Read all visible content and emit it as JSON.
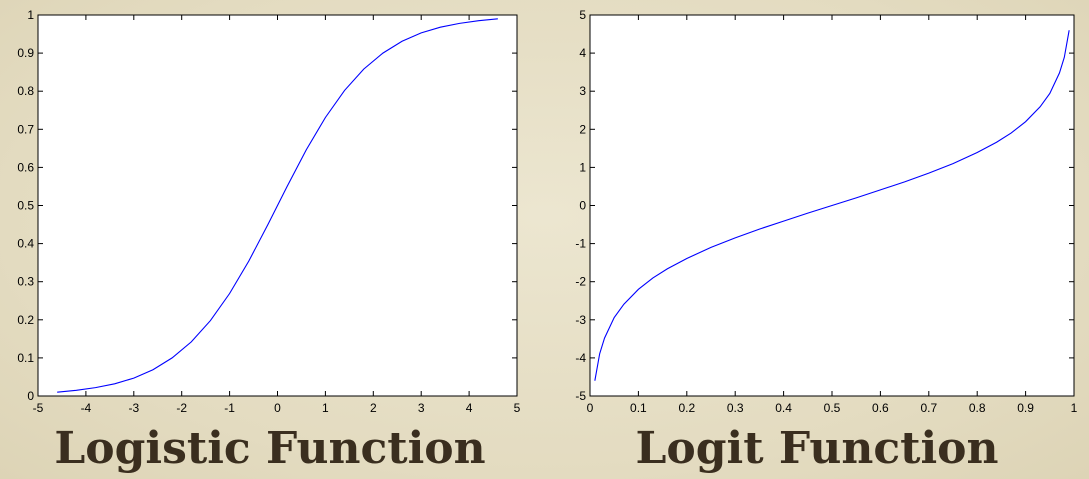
{
  "chart_data": [
    {
      "type": "line",
      "title": "Logistic Function",
      "xlabel": "",
      "ylabel": "",
      "xlim": [
        -5,
        5
      ],
      "ylim": [
        0,
        1
      ],
      "x_ticks": [
        "-5",
        "-4",
        "-3",
        "-2",
        "-1",
        "0",
        "1",
        "2",
        "3",
        "4",
        "5"
      ],
      "y_ticks": [
        "0",
        "0.1",
        "0.2",
        "0.3",
        "0.4",
        "0.5",
        "0.6",
        "0.7",
        "0.8",
        "0.9",
        "1"
      ],
      "grid": false,
      "line_color": "#0000ff",
      "series": [
        {
          "x": [
            -4.6,
            -4.2,
            -3.8,
            -3.4,
            -3.0,
            -2.6,
            -2.2,
            -1.8,
            -1.4,
            -1.0,
            -0.6,
            -0.2,
            0.2,
            0.6,
            1.0,
            1.4,
            1.8,
            2.2,
            2.6,
            3.0,
            3.4,
            3.8,
            4.2,
            4.6
          ],
          "y": [
            0.01,
            0.015,
            0.022,
            0.032,
            0.047,
            0.069,
            0.1,
            0.142,
            0.198,
            0.269,
            0.354,
            0.45,
            0.55,
            0.646,
            0.731,
            0.802,
            0.858,
            0.9,
            0.931,
            0.953,
            0.968,
            0.978,
            0.985,
            0.99
          ]
        }
      ]
    },
    {
      "type": "line",
      "title": "Logit Function",
      "xlabel": "",
      "ylabel": "",
      "xlim": [
        0,
        1
      ],
      "ylim": [
        -5,
        5
      ],
      "x_ticks": [
        "0",
        "0.1",
        "0.2",
        "0.3",
        "0.4",
        "0.5",
        "0.6",
        "0.7",
        "0.8",
        "0.9",
        "1"
      ],
      "y_ticks": [
        "-5",
        "-4",
        "-3",
        "-2",
        "-1",
        "0",
        "1",
        "2",
        "3",
        "4",
        "5"
      ],
      "grid": false,
      "line_color": "#0000ff",
      "series": [
        {
          "x": [
            0.01,
            0.02,
            0.03,
            0.05,
            0.07,
            0.1,
            0.13,
            0.16,
            0.2,
            0.25,
            0.3,
            0.35,
            0.4,
            0.45,
            0.5,
            0.55,
            0.6,
            0.65,
            0.7,
            0.75,
            0.8,
            0.84,
            0.87,
            0.9,
            0.93,
            0.95,
            0.97,
            0.98,
            0.99
          ],
          "y": [
            -4.6,
            -3.89,
            -3.48,
            -2.94,
            -2.59,
            -2.2,
            -1.9,
            -1.66,
            -1.39,
            -1.1,
            -0.85,
            -0.62,
            -0.41,
            -0.2,
            0.0,
            0.2,
            0.41,
            0.62,
            0.85,
            1.1,
            1.39,
            1.66,
            1.9,
            2.2,
            2.59,
            2.94,
            3.48,
            3.89,
            4.6
          ]
        }
      ]
    }
  ]
}
